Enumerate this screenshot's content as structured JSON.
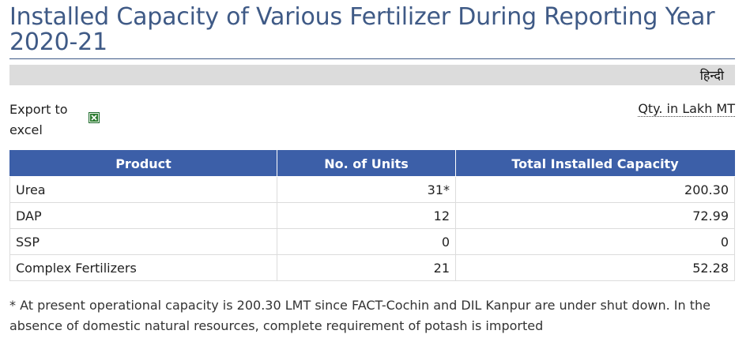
{
  "page": {
    "title": "Installed Capacity of Various Fertilizer During Reporting Year 2020-21",
    "language_link": "हिन्दी",
    "export_label": "Export to excel",
    "unit_note": "Qty. in Lakh MT",
    "icons": {
      "export": "excel-icon"
    },
    "colors": {
      "title": "#3f5a86",
      "table_header": "#3c5fa8",
      "lang_bar": "#dcdcdc"
    }
  },
  "table": {
    "headers": [
      "Product",
      "No. of Units",
      "Total Installed Capacity"
    ],
    "rows": [
      {
        "product": "Urea",
        "units": "31*",
        "capacity": "200.30"
      },
      {
        "product": "DAP",
        "units": "12",
        "capacity": "72.99"
      },
      {
        "product": "SSP",
        "units": "0",
        "capacity": "0"
      },
      {
        "product": "Complex Fertilizers",
        "units": "21",
        "capacity": "52.28"
      }
    ]
  },
  "footnote": "* At present operational capacity is 200.30 LMT since FACT-Cochin and DIL Kanpur are under shut down. In the absence of domestic natural resources, complete requirement of potash is imported"
}
